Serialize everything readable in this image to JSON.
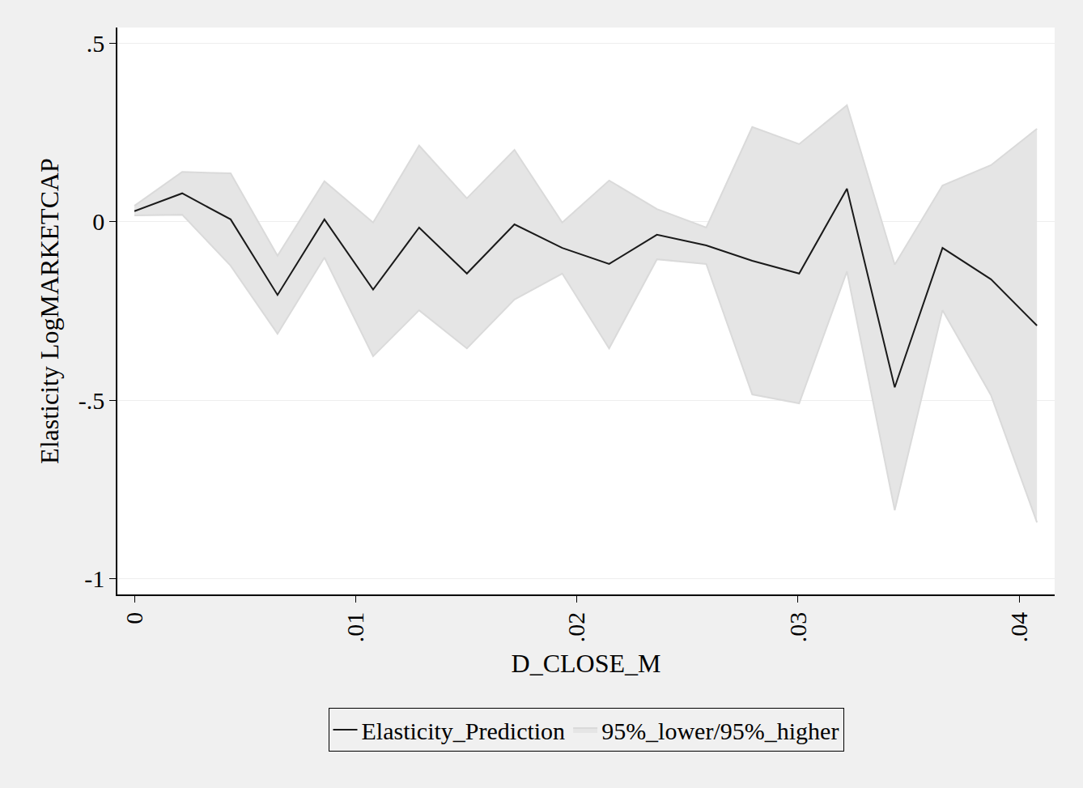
{
  "chart_data": {
    "type": "line",
    "x_label": "D_CLOSE_M",
    "y_label": "Elasticity LogMARKETCAP",
    "x": [
      0,
      0.00216,
      0.00435,
      0.00647,
      0.00859,
      0.01079,
      0.01287,
      0.01503,
      0.01718,
      0.01934,
      0.02146,
      0.02362,
      0.02585,
      0.02793,
      0.03005,
      0.03221,
      0.03437,
      0.03653,
      0.03872,
      0.0408
    ],
    "series": [
      {
        "name": "Elasticity_Prediction",
        "color": "#1a1a1a",
        "values": [
          0.03,
          0.08,
          0.007,
          -0.205,
          0.007,
          -0.19,
          -0.016,
          -0.145,
          -0.007,
          -0.073,
          -0.118,
          -0.036,
          -0.066,
          -0.109,
          -0.145,
          0.093,
          -0.464,
          -0.073,
          -0.161,
          -0.291
        ]
      }
    ],
    "band": {
      "name": "95%_lower/95%_higher",
      "color": "#e5e5e5",
      "lower": [
        0.018,
        0.02,
        -0.123,
        -0.314,
        -0.1,
        -0.377,
        -0.248,
        -0.355,
        -0.218,
        -0.145,
        -0.355,
        -0.105,
        -0.118,
        -0.484,
        -0.509,
        -0.139,
        -0.809,
        -0.248,
        -0.486,
        -0.843
      ],
      "upper": [
        0.045,
        0.14,
        0.136,
        -0.095,
        0.114,
        -0.002,
        0.214,
        0.066,
        0.202,
        -0.002,
        0.116,
        0.036,
        -0.016,
        0.266,
        0.218,
        0.327,
        -0.12,
        0.102,
        0.159,
        0.261
      ]
    },
    "xlim": [
      -0.00077,
      0.0416
    ],
    "ylim": [
      -1.045,
      0.545
    ],
    "xticks": [
      0,
      {
        "value": 0.01,
        "label": ".01"
      },
      {
        "value": 0.02,
        "label": ".02"
      },
      {
        "value": 0.03,
        "label": ".03"
      },
      {
        "value": 0.04,
        "label": ".04"
      }
    ],
    "yticks": [
      -1,
      {
        "value": -0.5,
        "label": "-.5"
      },
      0,
      {
        "value": 0.5,
        "label": ".5"
      }
    ],
    "grid": true,
    "legend": "bottom"
  }
}
